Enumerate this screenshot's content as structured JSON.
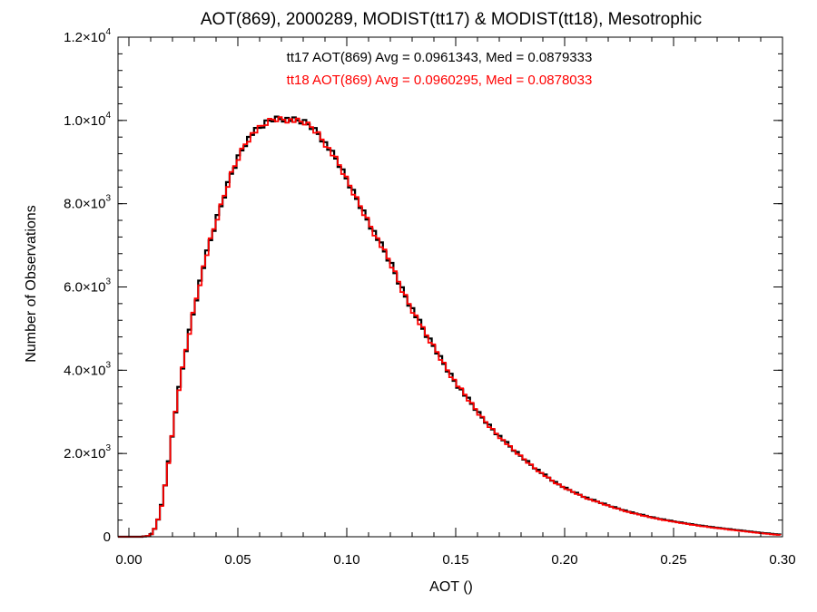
{
  "chart_data": {
    "type": "line",
    "style": "histogram-step",
    "title": "AOT(869), 2000289, MODIST(tt17) & MODIST(tt18), Mesotrophic",
    "xlabel": "AOT ()",
    "ylabel": "Number of Observations",
    "xlim": [
      -0.005,
      0.3
    ],
    "ylim": [
      0,
      12000
    ],
    "grid": false,
    "x_ticks": [
      {
        "value": 0.0,
        "label": "0.00"
      },
      {
        "value": 0.05,
        "label": "0.05"
      },
      {
        "value": 0.1,
        "label": "0.10"
      },
      {
        "value": 0.15,
        "label": "0.15"
      },
      {
        "value": 0.2,
        "label": "0.20"
      },
      {
        "value": 0.25,
        "label": "0.25"
      },
      {
        "value": 0.3,
        "label": "0.30"
      }
    ],
    "y_ticks": [
      {
        "value": 0,
        "mantissa": "0",
        "exponent": ""
      },
      {
        "value": 2000,
        "mantissa": "2.0×10",
        "exponent": "3"
      },
      {
        "value": 4000,
        "mantissa": "4.0×10",
        "exponent": "3"
      },
      {
        "value": 6000,
        "mantissa": "6.0×10",
        "exponent": "3"
      },
      {
        "value": 8000,
        "mantissa": "8.0×10",
        "exponent": "3"
      },
      {
        "value": 10000,
        "mantissa": "1.0×10",
        "exponent": "4"
      },
      {
        "value": 12000,
        "mantissa": "1.2×10",
        "exponent": "4"
      }
    ],
    "annotations": [
      {
        "text": "tt17 AOT(869) Avg = 0.0961343, Med = 0.0879333",
        "color": "#000000"
      },
      {
        "text": "tt18 AOT(869) Avg = 0.0960295, Med = 0.0878033",
        "color": "#ff0000"
      }
    ],
    "x": [
      -0.005,
      0.0,
      0.005,
      0.008,
      0.01,
      0.012,
      0.014,
      0.016,
      0.018,
      0.02,
      0.022,
      0.025,
      0.028,
      0.03,
      0.033,
      0.036,
      0.04,
      0.043,
      0.046,
      0.05,
      0.053,
      0.056,
      0.06,
      0.063,
      0.066,
      0.07,
      0.073,
      0.076,
      0.08,
      0.083,
      0.086,
      0.09,
      0.095,
      0.1,
      0.105,
      0.11,
      0.115,
      0.12,
      0.125,
      0.13,
      0.135,
      0.14,
      0.145,
      0.15,
      0.155,
      0.16,
      0.165,
      0.17,
      0.175,
      0.18,
      0.185,
      0.19,
      0.195,
      0.2,
      0.21,
      0.22,
      0.23,
      0.24,
      0.25,
      0.26,
      0.27,
      0.28,
      0.29,
      0.3
    ],
    "series": [
      {
        "name": "tt17",
        "color": "#000000",
        "values": [
          0,
          0,
          0,
          20,
          80,
          300,
          700,
          1300,
          2000,
          2800,
          3500,
          4400,
          5200,
          5700,
          6400,
          7000,
          7700,
          8200,
          8700,
          9200,
          9500,
          9700,
          9850,
          9980,
          10050,
          10050,
          10020,
          9990,
          9950,
          9850,
          9700,
          9400,
          9000,
          8500,
          8000,
          7500,
          7000,
          6500,
          5900,
          5400,
          4900,
          4500,
          4050,
          3650,
          3300,
          2950,
          2650,
          2380,
          2120,
          1900,
          1680,
          1480,
          1300,
          1160,
          920,
          740,
          580,
          460,
          360,
          280,
          210,
          150,
          90,
          40
        ]
      },
      {
        "name": "tt18",
        "color": "#ff0000",
        "values": [
          0,
          0,
          0,
          20,
          80,
          300,
          690,
          1290,
          1990,
          2790,
          3490,
          4390,
          5190,
          5690,
          6390,
          6990,
          7690,
          8190,
          8690,
          9190,
          9490,
          9690,
          9840,
          9970,
          10040,
          10040,
          10010,
          9980,
          9940,
          9840,
          9690,
          9390,
          8990,
          8490,
          7990,
          7490,
          6990,
          6490,
          5890,
          5390,
          4890,
          4490,
          4040,
          3640,
          3290,
          2940,
          2640,
          2370,
          2110,
          1890,
          1670,
          1470,
          1290,
          1150,
          910,
          730,
          570,
          450,
          350,
          270,
          200,
          140,
          80,
          30
        ]
      }
    ]
  }
}
